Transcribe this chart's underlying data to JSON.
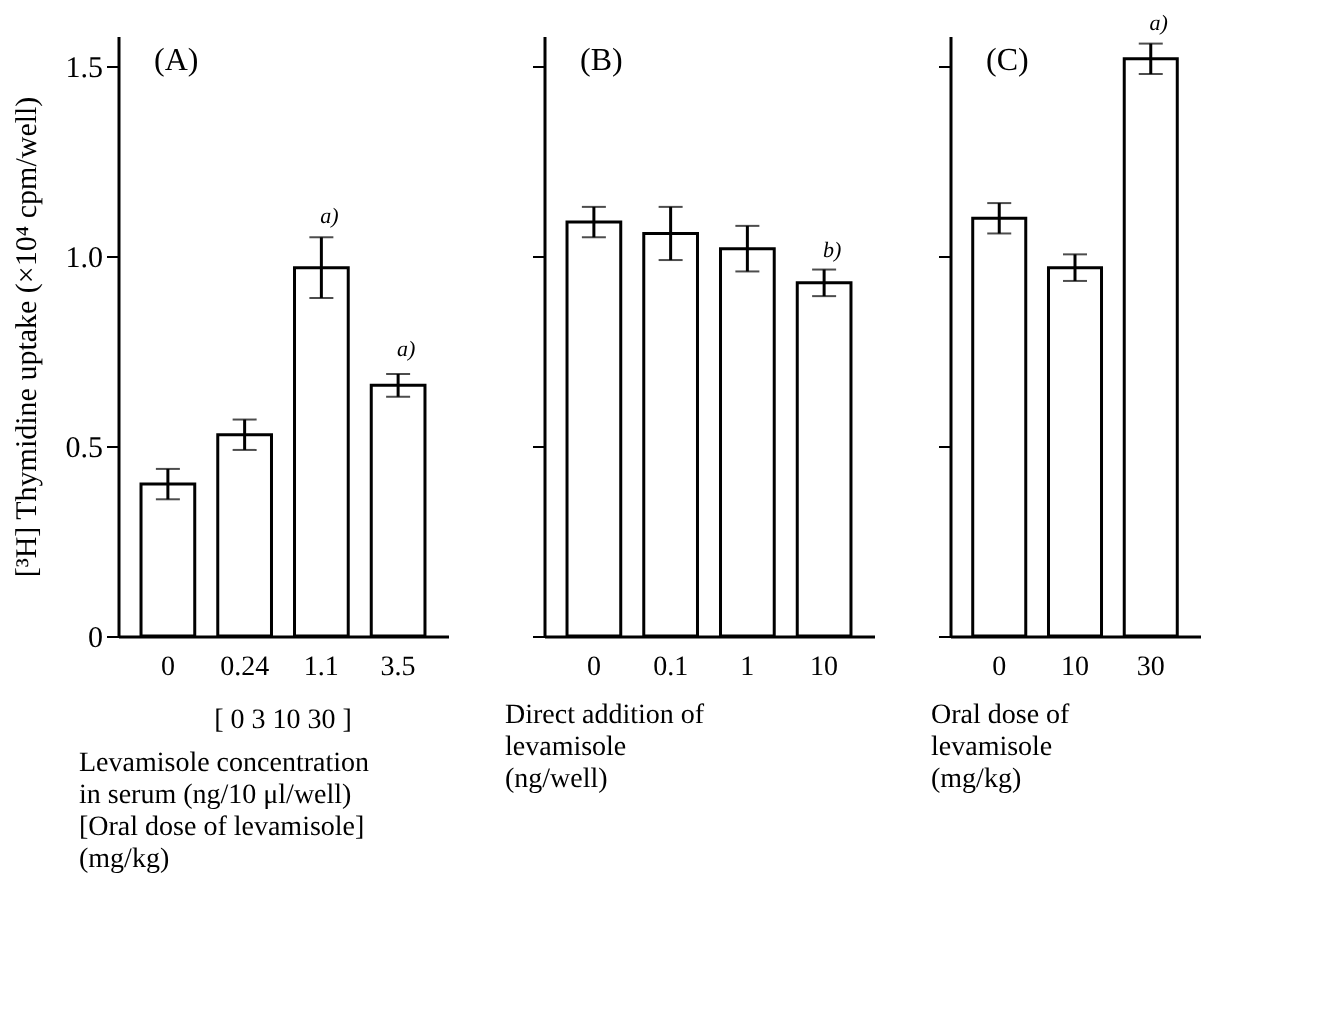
{
  "chart_data": [
    {
      "type": "bar",
      "title": "(A)",
      "categories": [
        "0",
        "0.24",
        "1.1",
        "3.5"
      ],
      "values": [
        0.4,
        0.53,
        0.97,
        0.66
      ],
      "errors": [
        0.04,
        0.04,
        0.08,
        0.03
      ],
      "color": "#ffffff",
      "ylim": [
        0,
        1.58
      ],
      "yticks": [
        0,
        0.5,
        {
          "value": 1,
          "label": "1.0"
        },
        1.5
      ],
      "ylabel": "[³H] Thymidine uptake (×10⁴ cpm/well)",
      "xlabel": "Levamisole concentration\nin serum (ng/10 μl/well)\n[Oral dose of levamisole]\n(mg/kg)",
      "annotations": [
        {
          "text": "a)",
          "x": "1.1",
          "y": 1.05
        },
        {
          "text": "a)",
          "x": "3.5",
          "y": 0.7
        },
        "[ 0 3 10 30 ]"
      ]
    },
    {
      "type": "bar",
      "title": "(B)",
      "categories": [
        "0",
        "0.1",
        "1",
        "10"
      ],
      "values": [
        1.09,
        1.06,
        1.02,
        0.93
      ],
      "errors": [
        0.04,
        0.07,
        0.06,
        0.035
      ],
      "color": "#ffffff",
      "ylim": [
        0,
        1.58
      ],
      "yticks": [
        0,
        0.5,
        1,
        1.5
      ],
      "tick_labels": "x",
      "xlabel": "Direct addition of\nlevamisole\n(ng/well)",
      "annotations": [
        {
          "text": "b)",
          "x": "10",
          "y": 0.96
        }
      ]
    },
    {
      "type": "bar",
      "title": "(C)",
      "categories": [
        "0",
        "10",
        "30"
      ],
      "values": [
        1.1,
        0.97,
        1.52
      ],
      "errors": [
        0.04,
        0.035,
        0.04
      ],
      "color": "#ffffff",
      "ylim": [
        0,
        1.58
      ],
      "yticks": [
        0,
        0.5,
        1,
        1.5
      ],
      "tick_labels": "x",
      "xlabel": "Oral dose of\nlevamisole\n(mg/kg)",
      "annotations": [
        {
          "text": "a)",
          "x": "30",
          "y": 1.56
        }
      ]
    }
  ]
}
